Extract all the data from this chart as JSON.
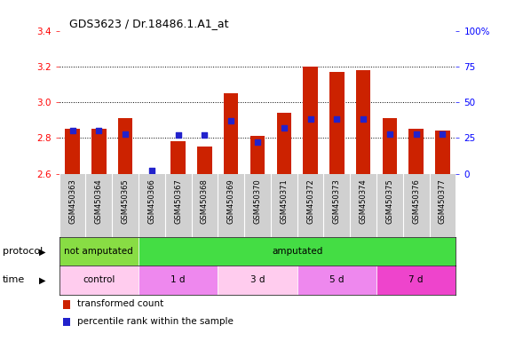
{
  "title": "GDS3623 / Dr.18486.1.A1_at",
  "samples": [
    "GSM450363",
    "GSM450364",
    "GSM450365",
    "GSM450366",
    "GSM450367",
    "GSM450368",
    "GSM450369",
    "GSM450370",
    "GSM450371",
    "GSM450372",
    "GSM450373",
    "GSM450374",
    "GSM450375",
    "GSM450376",
    "GSM450377"
  ],
  "transformed_count": [
    2.85,
    2.85,
    2.91,
    2.6,
    2.78,
    2.75,
    3.05,
    2.81,
    2.94,
    3.2,
    3.17,
    3.18,
    2.91,
    2.85,
    2.84
  ],
  "percentile_rank": [
    30,
    30,
    28,
    2,
    27,
    27,
    37,
    22,
    32,
    38,
    38,
    38,
    28,
    28,
    28
  ],
  "ylim_left": [
    2.6,
    3.4
  ],
  "ylim_right": [
    0,
    100
  ],
  "yticks_left": [
    2.6,
    2.8,
    3.0,
    3.2,
    3.4
  ],
  "yticks_right": [
    0,
    25,
    50,
    75,
    100
  ],
  "ytick_right_labels": [
    "0",
    "25",
    "50",
    "75",
    "100%"
  ],
  "bar_color": "#cc2200",
  "dot_color": "#2222cc",
  "bg_color": "#ffffff",
  "xticklabel_bg": "#d0d0d0",
  "protocol_not_amputated_color": "#88dd44",
  "protocol_amputated_color": "#44dd44",
  "time_colors": [
    "#ffccee",
    "#ee88ee",
    "#ffccee",
    "#ee88ee",
    "#ee44cc"
  ],
  "protocol_groups": [
    {
      "label": "not amputated",
      "start": 0,
      "end": 3
    },
    {
      "label": "amputated",
      "start": 3,
      "end": 15
    }
  ],
  "time_groups": [
    {
      "label": "control",
      "start": 0,
      "end": 3
    },
    {
      "label": "1 d",
      "start": 3,
      "end": 6
    },
    {
      "label": "3 d",
      "start": 6,
      "end": 9
    },
    {
      "label": "5 d",
      "start": 9,
      "end": 12
    },
    {
      "label": "7 d",
      "start": 12,
      "end": 15
    }
  ],
  "legend_items": [
    {
      "label": "transformed count",
      "color": "#cc2200"
    },
    {
      "label": "percentile rank within the sample",
      "color": "#2222cc"
    }
  ],
  "grid_yticks": [
    2.8,
    3.0,
    3.2
  ]
}
